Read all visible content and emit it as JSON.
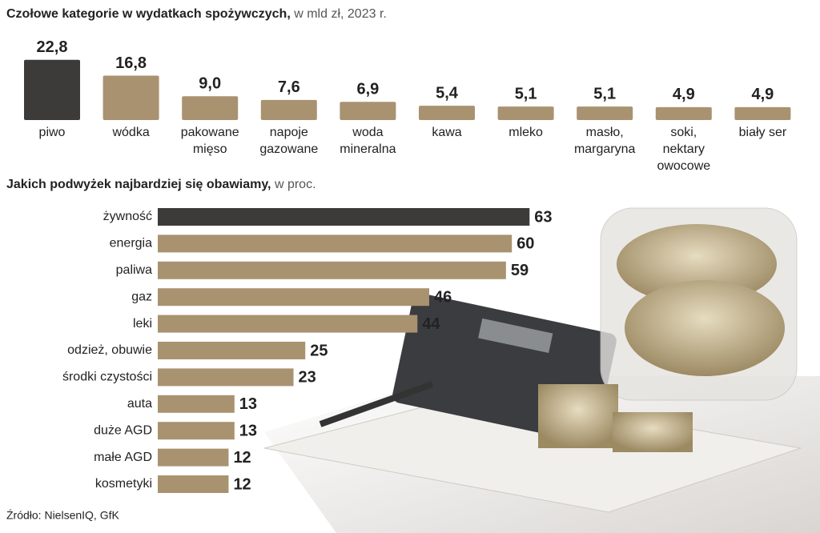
{
  "chart_data": [
    {
      "type": "bar",
      "orientation": "vertical",
      "title": "Czołowe kategorie w wydatkach spożywczych,",
      "subtitle": "w mld zł, 2023 r.",
      "categories": [
        "piwo",
        "wódka",
        "pakowane\nmięso",
        "napoje\ngazowane",
        "woda\nmineralna",
        "kawa",
        "mleko",
        "masło,\nmargaryna",
        "soki,\nnektary\nowocowe",
        "biały ser"
      ],
      "values": [
        22.8,
        16.8,
        9.0,
        7.6,
        6.9,
        5.4,
        5.1,
        5.1,
        4.9,
        4.9
      ],
      "value_labels": [
        "22,8",
        "16,8",
        "9,0",
        "7,6",
        "6,9",
        "5,4",
        "5,1",
        "5,1",
        "4,9",
        "4,9"
      ],
      "colors": [
        "#3d3b3a",
        "#a89270",
        "#a89270",
        "#a89270",
        "#a89270",
        "#a89270",
        "#a89270",
        "#a89270",
        "#a89270",
        "#a89270"
      ]
    },
    {
      "type": "bar",
      "orientation": "horizontal",
      "title": "Jakich podwyżek najbardziej się obawiamy,",
      "subtitle": "w proc.",
      "categories": [
        "żywność",
        "energia",
        "paliwa",
        "gaz",
        "leki",
        "odzież, obuwie",
        "środki czystości",
        "auta",
        "duże AGD",
        "małe AGD",
        "kosmetyki"
      ],
      "values": [
        63,
        60,
        59,
        46,
        44,
        25,
        23,
        13,
        13,
        12,
        12
      ],
      "colors": [
        "#3d3b3a",
        "#a89270",
        "#a89270",
        "#a89270",
        "#a89270",
        "#a89270",
        "#a89270",
        "#a89270",
        "#a89270",
        "#a89270",
        "#a89270"
      ]
    }
  ],
  "source": "Źródło: NielsenIQ, GfK"
}
